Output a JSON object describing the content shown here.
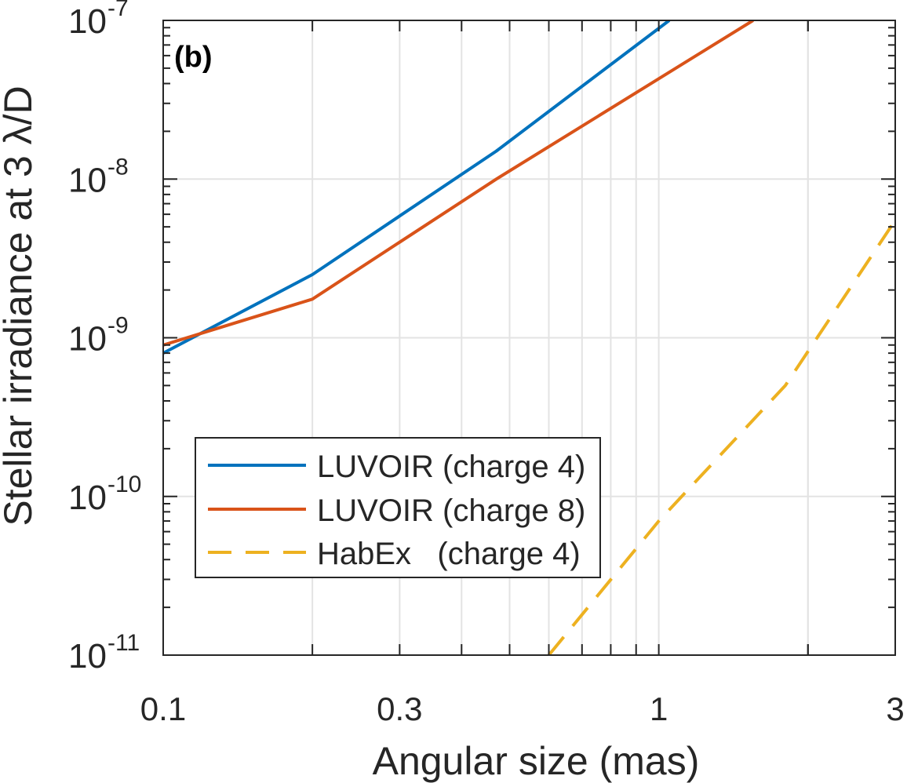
{
  "chart_data": {
    "type": "line",
    "panel_label": "(b)",
    "xlabel": "Angular size (mas)",
    "ylabel": "Stellar irradiance at 3 λ/D",
    "xscale": "log",
    "yscale": "log",
    "xlim": [
      0.1,
      3
    ],
    "ylim": [
      1e-11,
      1e-07
    ],
    "grid": true,
    "x_ticks": [
      {
        "value": 0.1,
        "label": "0.1"
      },
      {
        "value": 0.3,
        "label": "0.3"
      },
      {
        "value": 1,
        "label": "1"
      },
      {
        "value": 3,
        "label": "3"
      }
    ],
    "y_ticks": [
      {
        "value": 1e-11,
        "base": "10",
        "exp": "-11"
      },
      {
        "value": 1e-10,
        "base": "10",
        "exp": "-10"
      },
      {
        "value": 1e-09,
        "base": "10",
        "exp": "-9"
      },
      {
        "value": 1e-08,
        "base": "10",
        "exp": "-8"
      },
      {
        "value": 1e-07,
        "base": "10",
        "exp": "-7"
      }
    ],
    "legend_position": "lower-left",
    "series": [
      {
        "name": "LUVOIR (charge 4)",
        "color": "#0072BD",
        "style": "solid",
        "points": [
          [
            0.1,
            8e-10
          ],
          [
            0.2,
            2.5e-09
          ],
          [
            0.47,
            1.5e-08
          ],
          [
            1.05,
            1e-07
          ]
        ]
      },
      {
        "name": "LUVOIR (charge 8)",
        "color": "#D95319",
        "style": "solid",
        "points": [
          [
            0.1,
            9e-10
          ],
          [
            0.2,
            1.75e-09
          ],
          [
            0.47,
            1e-08
          ],
          [
            1.55,
            1e-07
          ]
        ]
      },
      {
        "name": "HabEx   (charge 4)",
        "color": "#EDB120",
        "style": "dashed",
        "points": [
          [
            0.6,
            1e-11
          ],
          [
            1.0,
            7e-11
          ],
          [
            1.8,
            5e-10
          ],
          [
            3.0,
            5.5e-09
          ]
        ]
      }
    ]
  }
}
